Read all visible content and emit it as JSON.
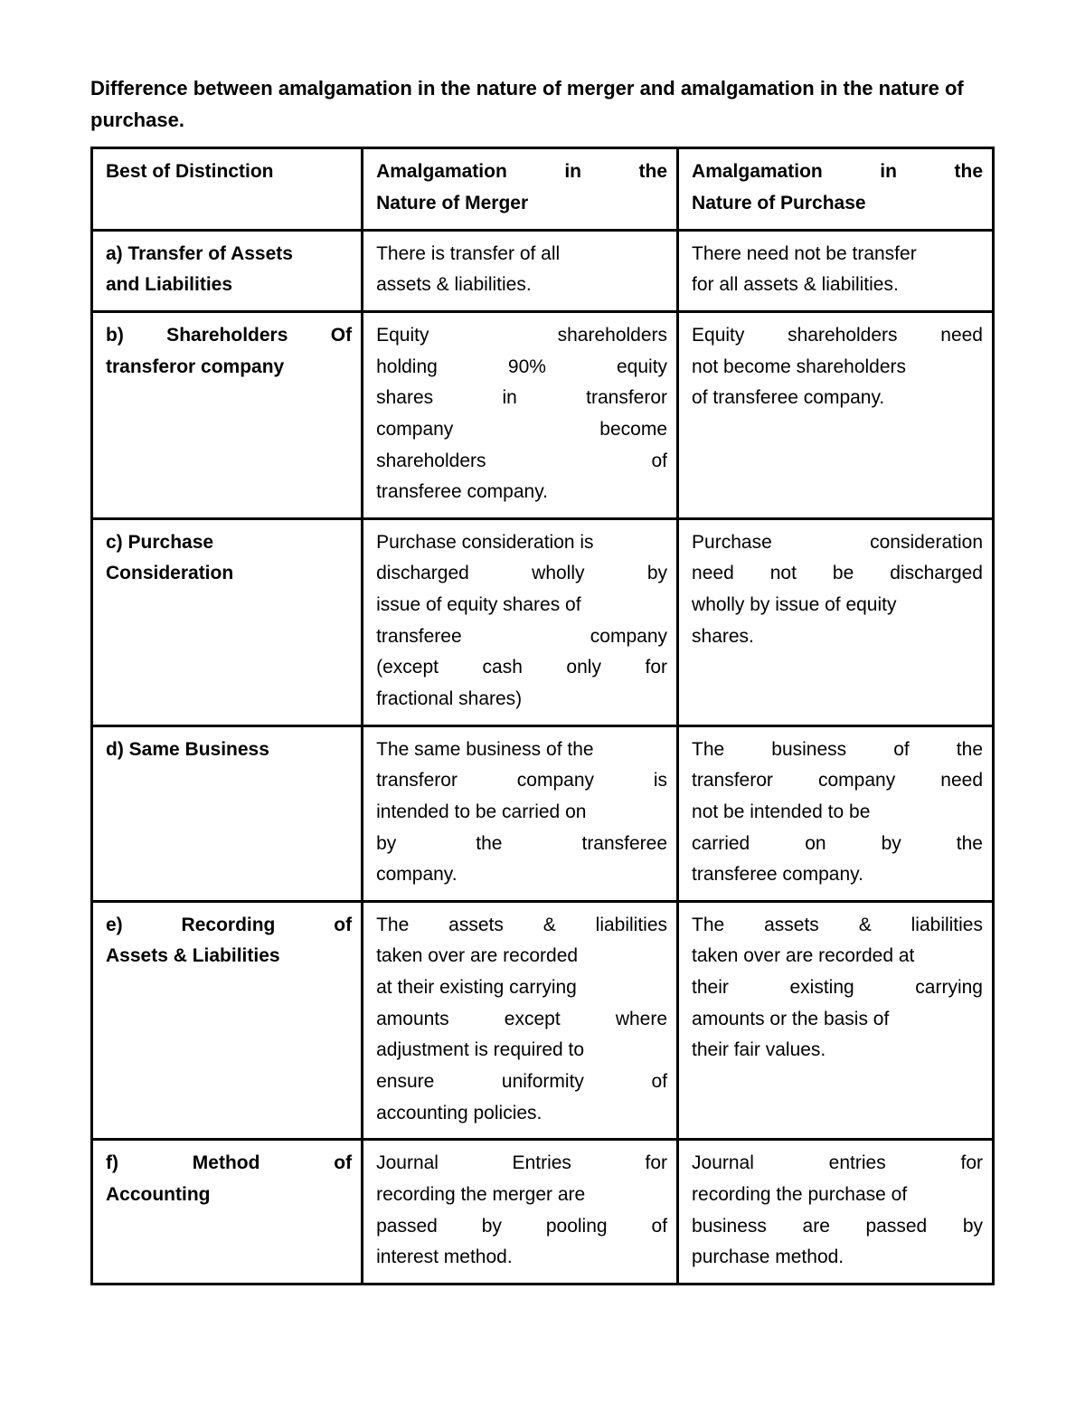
{
  "title": "Difference between amalgamation in the nature of merger and amalgamation in the nature of purchase.",
  "headers": {
    "col1": "Best of Distinction",
    "col2_l1": "Amalgamation   in   the",
    "col2_l2": "Nature of Merger",
    "col3_l1": "Amalgamation    in    the",
    "col3_l2": "Nature of Purchase"
  },
  "rows": {
    "a": {
      "c1_l1": "a)   Transfer of Assets",
      "c1_l2": "and Liabilities",
      "c2_l1": "There  is  transfer  of  all",
      "c2_l2": "assets & liabilities.",
      "c3_l1": "There need not be transfer",
      "c3_l2": "for all assets & liabilities."
    },
    "b": {
      "c1_l1": "b)  Shareholders      Of",
      "c1_l2": "transferor company",
      "c2_l1": "Equity         shareholders",
      "c2_l2": "holding      90%      equity",
      "c2_l3": "shares       in     transferor",
      "c2_l4": "company            become",
      "c2_l5": "shareholders               of",
      "c2_l6": "transferee company.",
      "c3_l1": "Equity shareholders    need",
      "c3_l2": "not become shareholders",
      "c3_l3": "of transferee company."
    },
    "c": {
      "c1_l1": "c)   Purchase",
      "c1_l2": "Consideration",
      "c2_l1": "Purchase consideration is",
      "c2_l2": "discharged     wholly    by",
      "c2_l3": "issue of equity shares of",
      "c2_l4": "transferee        company",
      "c2_l5": "(except   cash    only   for",
      "c2_l6": "fractional shares)",
      "c3_l1": "Purchase       consideration",
      "c3_l2": "need  not    be  discharged",
      "c3_l3": "wholly by issue of equity",
      "c3_l4": "shares."
    },
    "d": {
      "c1": "d)   Same Business",
      "c2_l1": "The same business of the",
      "c2_l2": "transferor    company    is",
      "c2_l3": "intended to be carried on",
      "c2_l4": "by       the       transferee",
      "c2_l5": "company.",
      "c3_l1": "The     business     of    the",
      "c3_l2": "transferor   company  need",
      "c3_l3": "not  be  intended  to  be",
      "c3_l4": "carried      on      by     the",
      "c3_l5": "transferee company."
    },
    "e": {
      "c1_l1": "e)  Recording           of",
      "c1_l2": "Assets & Liabilities",
      "c2_l1": "The  assets   &   liabilities",
      "c2_l2": "taken over are recorded",
      "c2_l3": "at their existing carrying",
      "c2_l4": "amounts     except  where",
      "c2_l5": "adjustment is required to",
      "c2_l6": "ensure     uniformity     of",
      "c2_l7": "accounting policies.",
      "c3_l1": "The   assets    &    liabilities",
      "c3_l2": "taken over are recorded at",
      "c3_l3": "their    existing     carrying",
      "c3_l4": "amounts or the basis of",
      "c3_l5": "their fair values."
    },
    "f": {
      "c1_l1": "f)    Method            of",
      "c1_l2": "Accounting",
      "c2_l1": "Journal     Entries       for",
      "c2_l2": "recording the merger are",
      "c2_l3": "passed   by   pooling    of",
      "c2_l4": "interest method.",
      "c3_l1": "Journal       entries       for",
      "c3_l2": "recording the purchase of",
      "c3_l3": "business   are    passed  by",
      "c3_l4": "purchase method."
    }
  }
}
